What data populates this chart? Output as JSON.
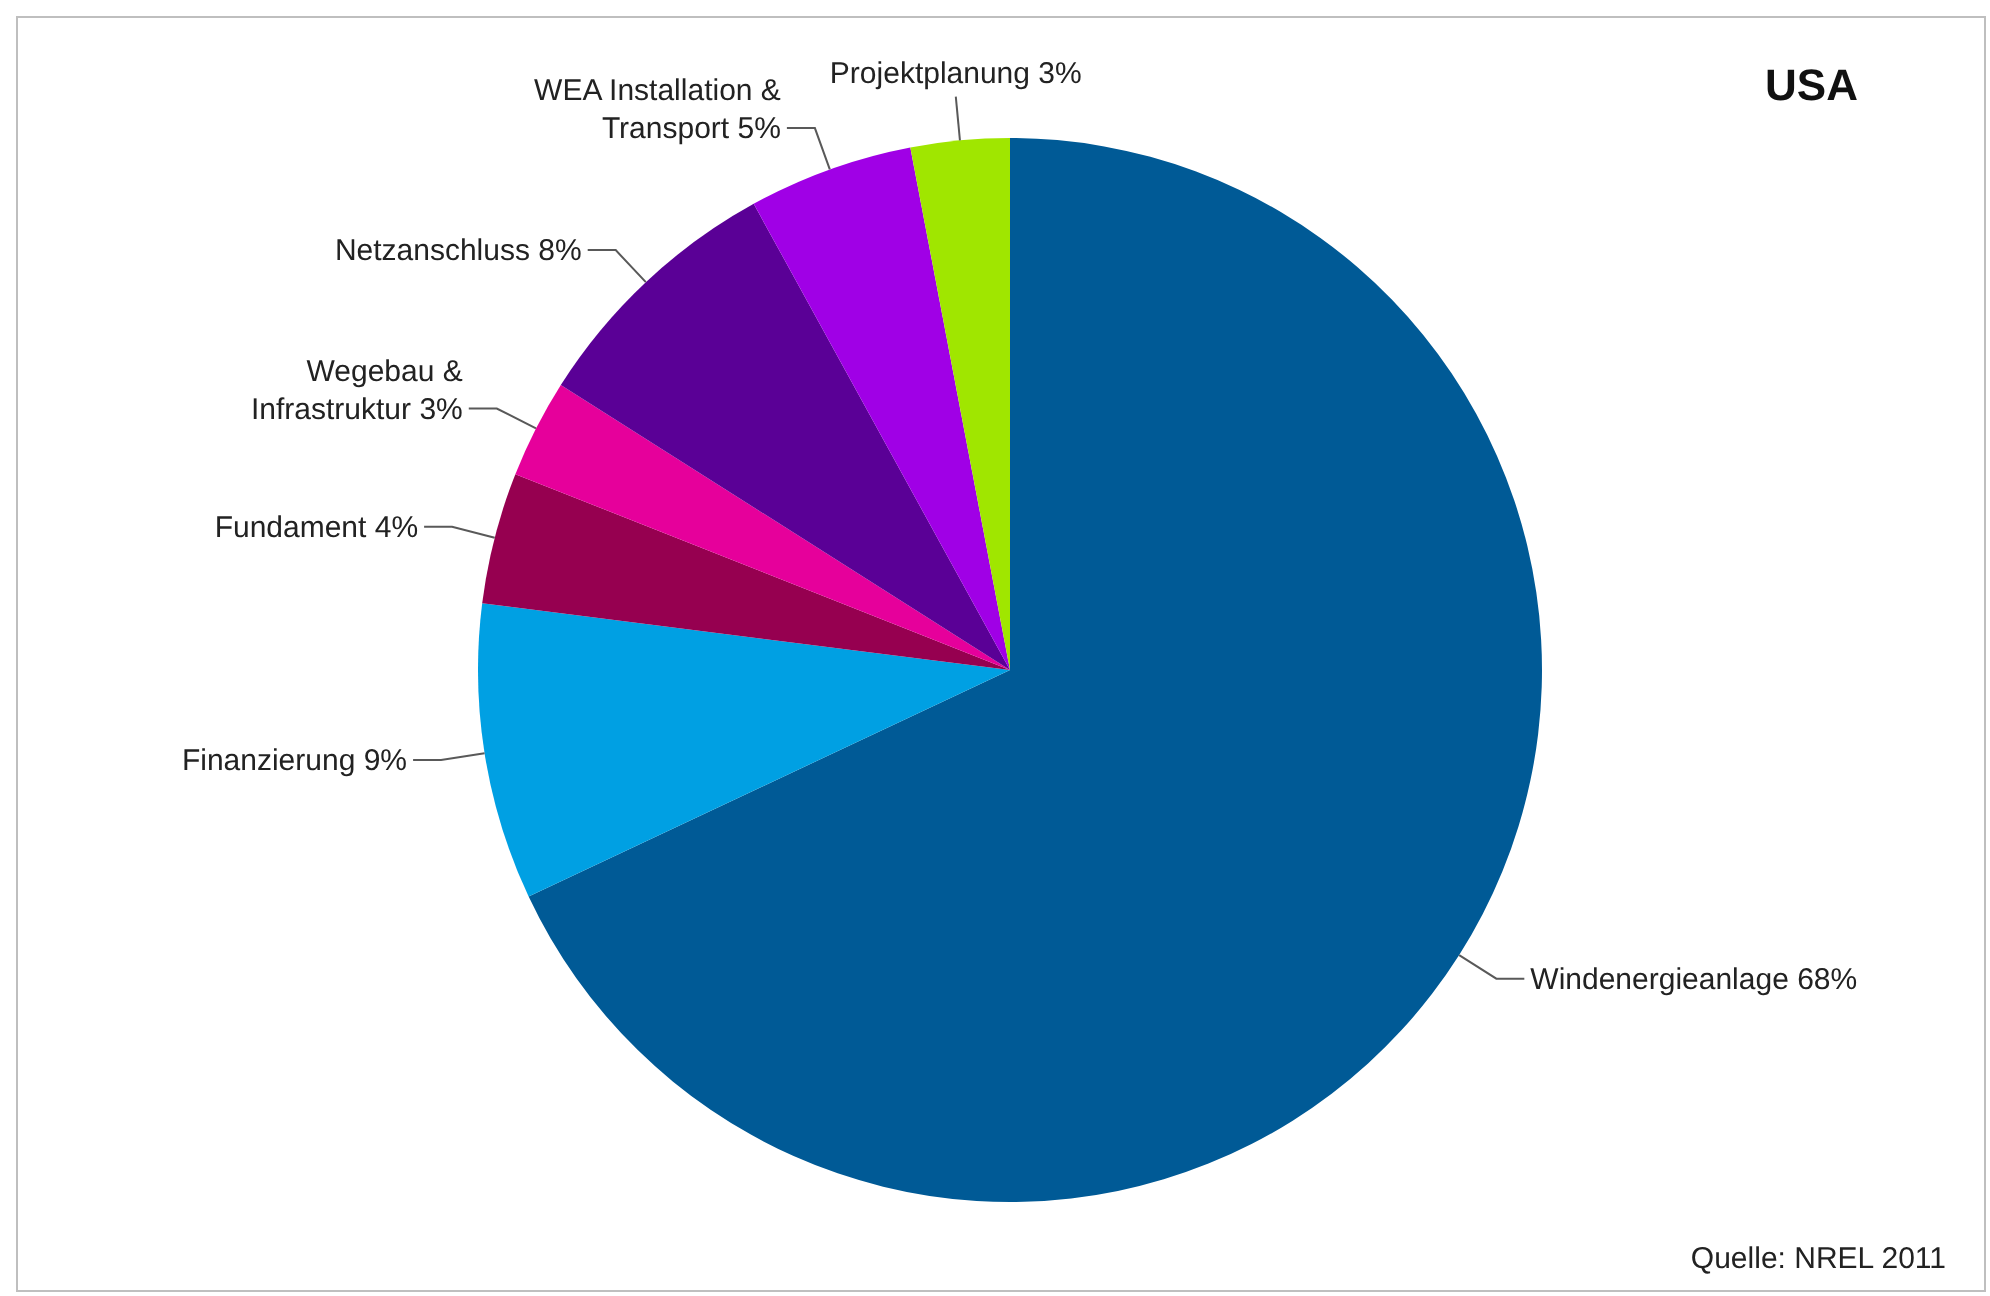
{
  "chart_data": {
    "type": "pie",
    "title": "USA",
    "categories": [
      "Windenergieanlage",
      "Finanzierung",
      "Fundament",
      "Wegebau & Infrastruktur",
      "Netzanschluss",
      "WEA Installation & Transport",
      "Projektplanung"
    ],
    "values": [
      68,
      9,
      4,
      3,
      8,
      5,
      3
    ],
    "value_labels": [
      "68%",
      "9%",
      "4%",
      "3%",
      "8%",
      "5%",
      "3%"
    ],
    "colors": [
      "#005a96",
      "#00a0e3",
      "#960050",
      "#e6009b",
      "#5a0096",
      "#a000e6",
      "#a0e600"
    ],
    "annotations": [
      "Quelle: NREL 2011"
    ]
  }
}
